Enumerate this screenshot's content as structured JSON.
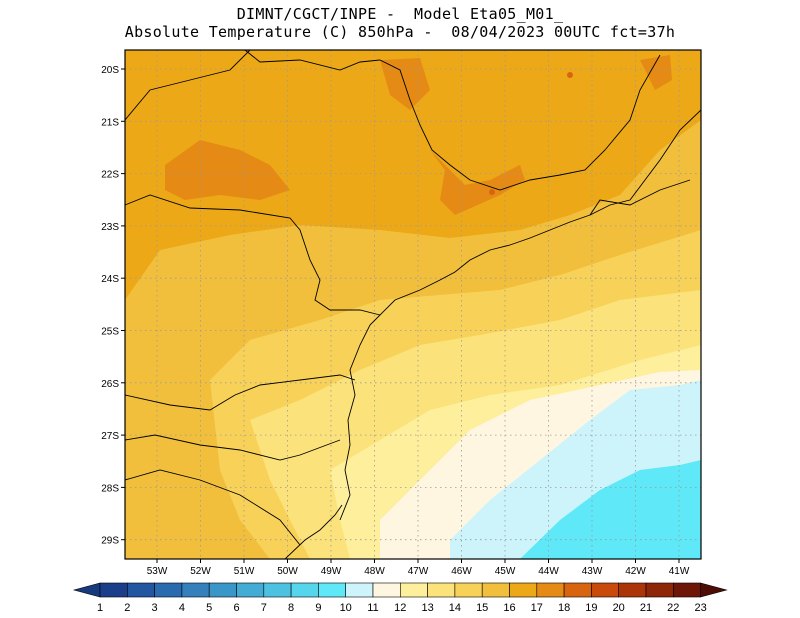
{
  "header": {
    "line1": "DIMNT/CGCT/INPE -  Model Eta05_M01_",
    "line2": "Absolute Temperature (C) 850hPa -  08/04/2023 00UTC fct=37h"
  },
  "axes": {
    "lat_labels": [
      "20S",
      "21S",
      "22S",
      "23S",
      "24S",
      "25S",
      "26S",
      "27S",
      "28S",
      "29S"
    ],
    "lon_labels": [
      "53W",
      "52W",
      "51W",
      "50W",
      "49W",
      "48W",
      "47W",
      "46W",
      "45W",
      "44W",
      "43W",
      "42W",
      "41W"
    ]
  },
  "colorbar": {
    "ticks": [
      "1",
      "2",
      "3",
      "4",
      "5",
      "6",
      "7",
      "8",
      "9",
      "10",
      "11",
      "12",
      "13",
      "14",
      "15",
      "16",
      "17",
      "18",
      "19",
      "20",
      "21",
      "22",
      "23"
    ],
    "colors": [
      "#1a3e8a",
      "#2356a0",
      "#2a6aae",
      "#3380bc",
      "#3a96c8",
      "#42acd4",
      "#4cc2e0",
      "#55d6ec",
      "#5ee8f8",
      "#cdf4fb",
      "#fef6e0",
      "#fdef9c",
      "#fbe27a",
      "#f8d258",
      "#f1bf3c",
      "#eca817",
      "#e58a14",
      "#d9640f",
      "#c94a0a",
      "#ac3409",
      "#8e2608",
      "#6e1608"
    ],
    "left_end_color": "#173a7e",
    "right_end_color": "#4d0d05"
  },
  "colors": {
    "gridline": "#9a9a9a",
    "coastline": "#000000",
    "frame": "#000000"
  }
}
